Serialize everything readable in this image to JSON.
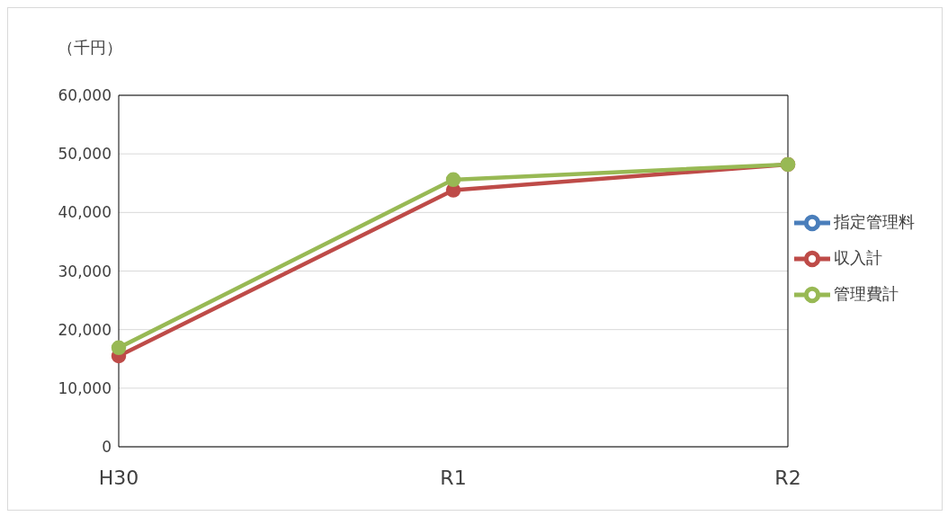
{
  "chart_data": {
    "type": "line",
    "ylabel": "（千円）",
    "categories": [
      "H30",
      "R1",
      "R2"
    ],
    "series": [
      {
        "name": "指定管理料",
        "color": "#4a7ebb",
        "values": [
          null,
          null,
          null
        ]
      },
      {
        "name": "収入計",
        "color": "#be4b48",
        "values": [
          15500,
          43800,
          48200
        ]
      },
      {
        "name": "管理費計",
        "color": "#98b954",
        "values": [
          16900,
          45600,
          48200
        ]
      }
    ],
    "ylim": [
      0,
      60000
    ],
    "yticks": [
      0,
      {
        "value": 10000,
        "label": "10,000"
      },
      {
        "value": 20000,
        "label": "20,000"
      },
      {
        "value": 30000,
        "label": "30,000"
      },
      {
        "value": 40000,
        "label": "40,000"
      },
      {
        "value": 50000,
        "label": "50,000"
      },
      {
        "value": 60000,
        "label": "60,000"
      }
    ],
    "grid": "y",
    "legend": "right",
    "marker": "circle",
    "line_style": "solid"
  }
}
